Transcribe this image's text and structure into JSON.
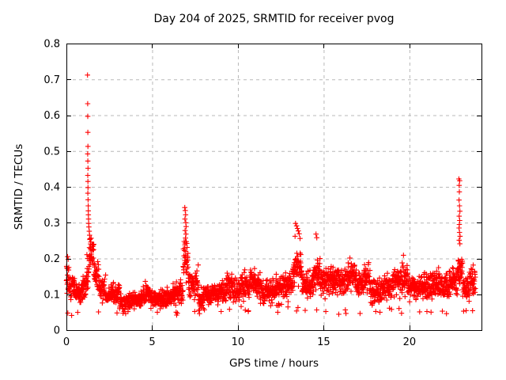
{
  "chart_data": {
    "type": "scatter",
    "title": "Day 204 of 2025, SRMTID for receiver pvog",
    "xlabel": "GPS time / hours",
    "ylabel": "SRMTID / TECUs",
    "xlim": [
      0,
      24.2
    ],
    "ylim": [
      0,
      0.8
    ],
    "xticks": [
      {
        "v": 0,
        "label": "0"
      },
      {
        "v": 5,
        "label": "5"
      },
      {
        "v": 10,
        "label": "10"
      },
      {
        "v": 15,
        "label": "15"
      },
      {
        "v": 20,
        "label": "20"
      }
    ],
    "yticks": [
      {
        "v": 0.0,
        "label": "0"
      },
      {
        "v": 0.1,
        "label": "0.1"
      },
      {
        "v": 0.2,
        "label": "0.2"
      },
      {
        "v": 0.3,
        "label": "0.3"
      },
      {
        "v": 0.4,
        "label": "0.4"
      },
      {
        "v": 0.5,
        "label": "0.5"
      },
      {
        "v": 0.6,
        "label": "0.6"
      },
      {
        "v": 0.7,
        "label": "0.7"
      },
      {
        "v": 0.8,
        "label": "0.8"
      }
    ],
    "grid": true,
    "legend": "none",
    "marker": "plus",
    "marker_color": "#ff0000",
    "grid_color": "#b8b8b8",
    "border_color": "#000000",
    "background_color": "#ffffff",
    "data_start_hour": 0,
    "data_end_hour": 23.85,
    "sample_step_hours": 0.00926,
    "seed": 12045,
    "value_floor": 0.04,
    "band_segments": [
      [
        0.0,
        0.15,
        0.145,
        0.05,
        0.21
      ],
      [
        0.15,
        0.5,
        0.125,
        0.045,
        0.2
      ],
      [
        0.5,
        0.9,
        0.105,
        0.035,
        0.17
      ],
      [
        0.9,
        1.15,
        0.115,
        0.04,
        0.19
      ],
      [
        1.15,
        1.32,
        0.15,
        0.07,
        0.26
      ],
      [
        1.32,
        1.6,
        0.21,
        0.055,
        0.32
      ],
      [
        1.6,
        1.9,
        0.155,
        0.05,
        0.24
      ],
      [
        1.9,
        2.3,
        0.115,
        0.04,
        0.19
      ],
      [
        2.3,
        2.6,
        0.09,
        0.03,
        0.14
      ],
      [
        2.6,
        3.1,
        0.1,
        0.038,
        0.16
      ],
      [
        3.1,
        3.7,
        0.08,
        0.028,
        0.125
      ],
      [
        3.7,
        4.2,
        0.085,
        0.03,
        0.13
      ],
      [
        4.2,
        4.6,
        0.09,
        0.033,
        0.15
      ],
      [
        4.6,
        4.9,
        0.108,
        0.04,
        0.17
      ],
      [
        4.9,
        5.5,
        0.085,
        0.03,
        0.13
      ],
      [
        5.5,
        6.2,
        0.09,
        0.033,
        0.14
      ],
      [
        6.2,
        6.8,
        0.1,
        0.04,
        0.16
      ],
      [
        6.8,
        7.1,
        0.19,
        0.075,
        0.335
      ],
      [
        7.1,
        7.7,
        0.135,
        0.05,
        0.215
      ],
      [
        7.7,
        8.0,
        0.09,
        0.04,
        0.15
      ],
      [
        8.0,
        8.6,
        0.1,
        0.035,
        0.16
      ],
      [
        8.6,
        9.3,
        0.107,
        0.04,
        0.17
      ],
      [
        9.3,
        9.7,
        0.125,
        0.048,
        0.21
      ],
      [
        9.7,
        10.2,
        0.11,
        0.04,
        0.175
      ],
      [
        10.2,
        11.3,
        0.125,
        0.05,
        0.22
      ],
      [
        11.3,
        12.0,
        0.108,
        0.04,
        0.175
      ],
      [
        12.0,
        12.6,
        0.115,
        0.045,
        0.185
      ],
      [
        12.6,
        13.2,
        0.125,
        0.05,
        0.205
      ],
      [
        13.2,
        13.7,
        0.175,
        0.06,
        0.3
      ],
      [
        13.7,
        14.4,
        0.125,
        0.045,
        0.195
      ],
      [
        14.4,
        14.8,
        0.155,
        0.055,
        0.27
      ],
      [
        14.8,
        15.6,
        0.138,
        0.05,
        0.215
      ],
      [
        15.6,
        16.4,
        0.14,
        0.05,
        0.225
      ],
      [
        16.4,
        16.9,
        0.155,
        0.055,
        0.26
      ],
      [
        16.9,
        17.3,
        0.13,
        0.045,
        0.205
      ],
      [
        17.3,
        17.7,
        0.148,
        0.055,
        0.26
      ],
      [
        17.7,
        18.4,
        0.108,
        0.045,
        0.175
      ],
      [
        18.4,
        19.0,
        0.118,
        0.045,
        0.195
      ],
      [
        19.0,
        19.5,
        0.138,
        0.05,
        0.24
      ],
      [
        19.5,
        19.9,
        0.148,
        0.055,
        0.255
      ],
      [
        19.9,
        20.6,
        0.118,
        0.04,
        0.185
      ],
      [
        20.6,
        21.2,
        0.118,
        0.045,
        0.195
      ],
      [
        21.2,
        21.8,
        0.128,
        0.05,
        0.215
      ],
      [
        21.8,
        22.3,
        0.118,
        0.05,
        0.205
      ],
      [
        22.3,
        22.8,
        0.138,
        0.05,
        0.235
      ],
      [
        22.8,
        23.1,
        0.165,
        0.05,
        0.255
      ],
      [
        23.1,
        23.5,
        0.118,
        0.04,
        0.195
      ],
      [
        23.5,
        23.85,
        0.14,
        0.05,
        0.22
      ]
    ],
    "outlier_points": [
      [
        1.23,
        0.712
      ],
      [
        1.24,
        0.632
      ],
      [
        1.245,
        0.597
      ],
      [
        1.25,
        0.552
      ],
      [
        1.255,
        0.513
      ],
      [
        1.24,
        0.492
      ],
      [
        1.25,
        0.472
      ],
      [
        1.26,
        0.452
      ],
      [
        1.245,
        0.432
      ],
      [
        1.255,
        0.415
      ],
      [
        1.26,
        0.398
      ],
      [
        1.25,
        0.382
      ],
      [
        1.265,
        0.364
      ],
      [
        1.27,
        0.347
      ],
      [
        1.275,
        0.333
      ],
      [
        1.28,
        0.322
      ],
      [
        1.29,
        0.31
      ],
      [
        1.3,
        0.298
      ],
      [
        1.31,
        0.288
      ],
      [
        1.33,
        0.276
      ],
      [
        1.35,
        0.265
      ],
      [
        1.38,
        0.255
      ],
      [
        1.42,
        0.246
      ],
      [
        6.9,
        0.342
      ],
      [
        6.93,
        0.334
      ],
      [
        6.95,
        0.322
      ],
      [
        6.91,
        0.31
      ],
      [
        6.96,
        0.3
      ],
      [
        6.98,
        0.289
      ],
      [
        6.92,
        0.278
      ],
      [
        6.97,
        0.268
      ],
      [
        6.94,
        0.257
      ],
      [
        6.99,
        0.247
      ],
      [
        6.91,
        0.238
      ],
      [
        13.36,
        0.298
      ],
      [
        13.42,
        0.291
      ],
      [
        13.47,
        0.284
      ],
      [
        13.52,
        0.277
      ],
      [
        13.57,
        0.269
      ],
      [
        13.33,
        0.262
      ],
      [
        13.62,
        0.256
      ],
      [
        14.55,
        0.268
      ],
      [
        14.6,
        0.258
      ],
      [
        22.88,
        0.422
      ],
      [
        22.93,
        0.417
      ],
      [
        22.9,
        0.404
      ],
      [
        22.91,
        0.386
      ],
      [
        22.89,
        0.363
      ],
      [
        22.92,
        0.347
      ],
      [
        22.94,
        0.332
      ],
      [
        22.9,
        0.318
      ],
      [
        22.93,
        0.306
      ],
      [
        22.91,
        0.295
      ],
      [
        22.89,
        0.285
      ],
      [
        22.92,
        0.273
      ],
      [
        22.95,
        0.262
      ],
      [
        22.9,
        0.251
      ],
      [
        22.94,
        0.241
      ],
      [
        0.07,
        0.205
      ],
      [
        0.1,
        0.198
      ],
      [
        2.95,
        0.048
      ],
      [
        3.3,
        0.047
      ],
      [
        3.36,
        0.052
      ],
      [
        5.3,
        0.05
      ],
      [
        7.76,
        0.046
      ],
      [
        9.02,
        0.052
      ],
      [
        10.6,
        0.052
      ],
      [
        12.32,
        0.05
      ],
      [
        13.92,
        0.055
      ],
      [
        18.28,
        0.05
      ],
      [
        21.02,
        0.052
      ],
      [
        22.16,
        0.046
      ]
    ]
  }
}
